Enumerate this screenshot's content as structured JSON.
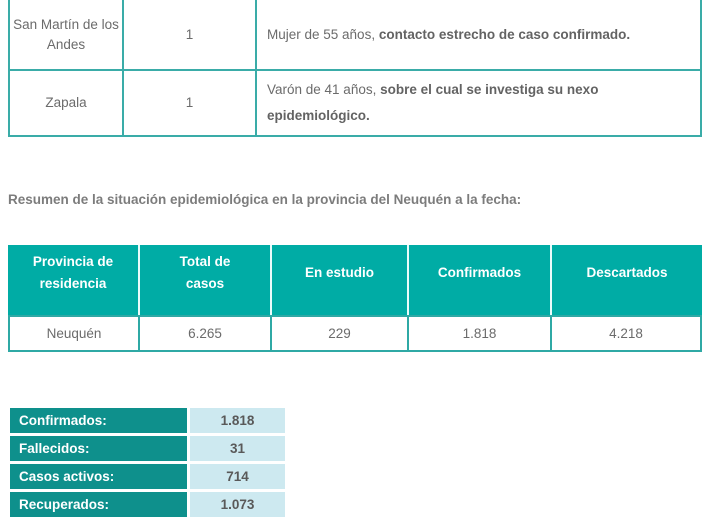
{
  "colors": {
    "table_border": "#3aaca8",
    "header_fill": "#00aca5",
    "totals_label_fill": "#0e908c",
    "totals_value_fill": "#cde9f0",
    "body_text": "#6b6b6b",
    "title_text": "#7c7c7c"
  },
  "cases_table": {
    "rows": [
      {
        "city": "San Martín de los Andes",
        "count": "1",
        "desc_normal": "Mujer de 55 años, ",
        "desc_bold": "contacto estrecho de caso confirmado."
      },
      {
        "city": "Zapala",
        "count": "1",
        "desc_normal": "Varón de 41 años, ",
        "desc_bold": "sobre el cual se investiga su nexo epidemiológico."
      }
    ]
  },
  "summary_title": "Resumen de la situación epidemiológica en la provincia del Neuquén a la fecha:",
  "province_table": {
    "headers": [
      "Provincia de\nresidencia",
      "Total de\ncasos",
      "En estudio",
      "Confirmados",
      "Descartados"
    ],
    "row": [
      "Neuquén",
      "6.265",
      "229",
      "1.818",
      "4.218"
    ]
  },
  "totals_table": {
    "rows": [
      {
        "label": "Confirmados:",
        "value": "1.818"
      },
      {
        "label": "Fallecidos:",
        "value": "31"
      },
      {
        "label": "Casos activos:",
        "value": "714"
      },
      {
        "label": "Recuperados:",
        "value": "1.073"
      }
    ]
  }
}
